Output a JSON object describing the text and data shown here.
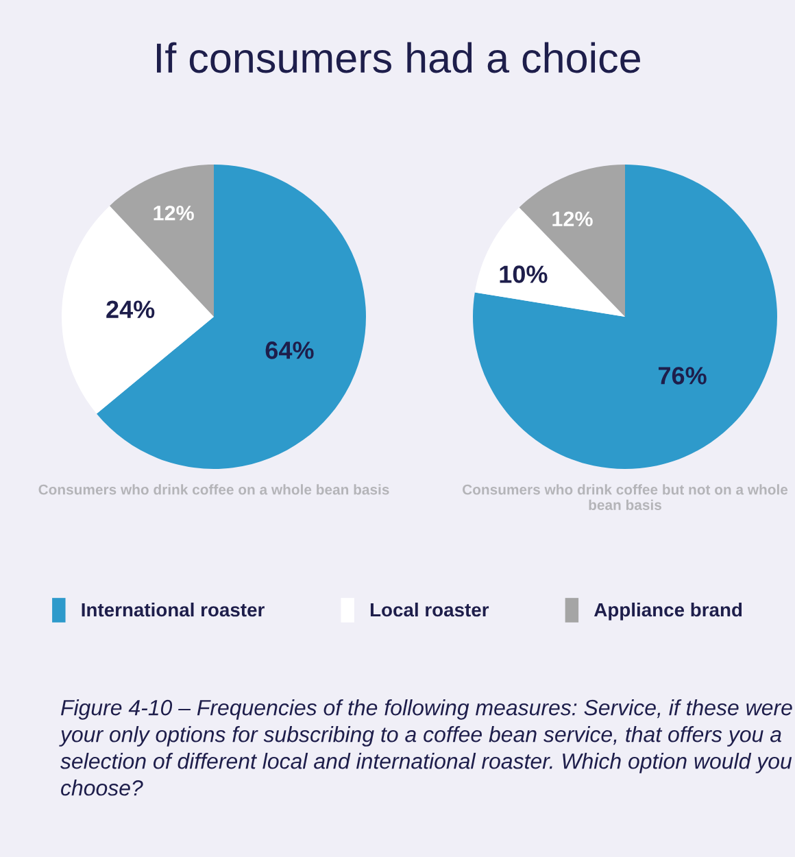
{
  "chart_data": [
    {
      "type": "pie",
      "title": "If consumers had a choice",
      "xlabel": "Consumers who drink coffee on a whole bean basis",
      "categories": [
        "International roaster",
        "Local roaster",
        "Appliance brand"
      ],
      "values": [
        64,
        24,
        12
      ],
      "value_labels": [
        "64%",
        "24%",
        "12%"
      ],
      "colors": [
        "#2e9acb",
        "#ffffff",
        "#a5a5a5"
      ],
      "legend": "bottom"
    },
    {
      "type": "pie",
      "xlabel": "Consumers who drink coffee but not on a whole bean basis",
      "categories": [
        null,
        null,
        null
      ],
      "values": [
        76,
        10,
        12
      ],
      "value_labels": [
        "76%",
        "10%",
        "12%"
      ],
      "colors": [
        "#2e9acb",
        "#ffffff",
        "#a5a5a5"
      ],
      "annotations": [
        "Figure 4-10 – Frequencies of the following measures: Service, if these were your only options for subscribing to a coffee bean service, that offers you a selection of different local and international roaster. Which option would you choose?"
      ]
    }
  ]
}
